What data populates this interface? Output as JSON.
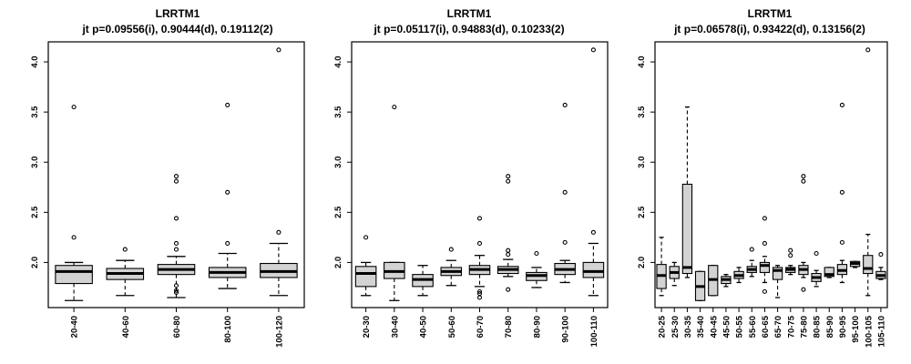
{
  "chart_data": [
    {
      "type": "boxplot",
      "title": "LRRTM1",
      "subtitle": "jt p=0.09556(i), 0.90444(d), 0.19112(2)",
      "ylim": [
        1.55,
        4.2
      ],
      "yticks": [
        "2.0",
        "2.5",
        "3.0",
        "3.5",
        "4.0"
      ],
      "categories": [
        "20-40",
        "40-60",
        "60-80",
        "80-100",
        "100-120"
      ],
      "boxes": [
        {
          "whisker_low": 1.62,
          "q1": 1.79,
          "median": 1.91,
          "q3": 1.97,
          "whisker_high": 2.0,
          "outliers": [
            2.25,
            3.55
          ]
        },
        {
          "whisker_low": 1.67,
          "q1": 1.83,
          "median": 1.89,
          "q3": 1.94,
          "whisker_high": 2.02,
          "outliers": [
            2.13
          ]
        },
        {
          "whisker_low": 1.65,
          "q1": 1.88,
          "median": 1.93,
          "q3": 1.98,
          "whisker_high": 2.06,
          "outliers": [
            1.7,
            1.72,
            1.77,
            2.13,
            2.19,
            2.44,
            2.81,
            2.86
          ]
        },
        {
          "whisker_low": 1.74,
          "q1": 1.85,
          "median": 1.9,
          "q3": 1.95,
          "whisker_high": 2.09,
          "outliers": [
            2.19,
            2.7,
            3.57
          ]
        },
        {
          "whisker_low": 1.67,
          "q1": 1.85,
          "median": 1.91,
          "q3": 1.99,
          "whisker_high": 2.19,
          "outliers": [
            2.3,
            4.12
          ]
        }
      ]
    },
    {
      "type": "boxplot",
      "title": "LRRTM1",
      "subtitle": "jt p=0.05117(i), 0.94883(d), 0.10233(2)",
      "ylim": [
        1.55,
        4.2
      ],
      "yticks": [
        "2.0",
        "2.5",
        "3.0",
        "3.5",
        "4.0"
      ],
      "categories": [
        "20-30",
        "30-40",
        "40-50",
        "50-60",
        "60-70",
        "70-80",
        "80-90",
        "90-100",
        "100-110"
      ],
      "boxes": [
        {
          "whisker_low": 1.67,
          "q1": 1.76,
          "median": 1.89,
          "q3": 1.96,
          "whisker_high": 2.0,
          "outliers": [
            2.25
          ]
        },
        {
          "whisker_low": 1.62,
          "q1": 1.84,
          "median": 1.91,
          "q3": 2.0,
          "whisker_high": 2.0,
          "outliers": [
            3.55
          ]
        },
        {
          "whisker_low": 1.67,
          "q1": 1.76,
          "median": 1.83,
          "q3": 1.88,
          "whisker_high": 1.97,
          "outliers": []
        },
        {
          "whisker_low": 1.77,
          "q1": 1.87,
          "median": 1.91,
          "q3": 1.95,
          "whisker_high": 2.02,
          "outliers": [
            2.13
          ]
        },
        {
          "whisker_low": 1.76,
          "q1": 1.88,
          "median": 1.93,
          "q3": 1.97,
          "whisker_high": 2.07,
          "outliers": [
            1.65,
            1.69,
            1.71,
            2.19,
            2.44
          ]
        },
        {
          "whisker_low": 1.86,
          "q1": 1.89,
          "median": 1.93,
          "q3": 1.96,
          "whisker_high": 2.03,
          "outliers": [
            1.73,
            2.08,
            2.12,
            2.81,
            2.86
          ]
        },
        {
          "whisker_low": 1.75,
          "q1": 1.82,
          "median": 1.87,
          "q3": 1.9,
          "whisker_high": 1.95,
          "outliers": [
            2.09
          ]
        },
        {
          "whisker_low": 1.8,
          "q1": 1.88,
          "median": 1.93,
          "q3": 1.99,
          "whisker_high": 2.02,
          "outliers": [
            2.2,
            2.7,
            3.57
          ]
        },
        {
          "whisker_low": 1.67,
          "q1": 1.85,
          "median": 1.91,
          "q3": 2.0,
          "whisker_high": 2.19,
          "outliers": [
            2.3,
            4.12
          ]
        }
      ]
    },
    {
      "type": "boxplot",
      "title": "LRRTM1",
      "subtitle": "jt p=0.06578(i), 0.93422(d), 0.13156(2)",
      "ylim": [
        1.55,
        4.2
      ],
      "yticks": [
        "2.0",
        "2.5",
        "3.0",
        "3.5",
        "4.0"
      ],
      "categories": [
        "20-25",
        "25-30",
        "30-35",
        "35-40",
        "40-45",
        "45-50",
        "50-55",
        "55-60",
        "60-65",
        "65-70",
        "70-75",
        "75-80",
        "80-85",
        "85-90",
        "90-95",
        "95-100",
        "100-105",
        "105-110"
      ],
      "boxes": [
        {
          "whisker_low": 1.67,
          "q1": 1.74,
          "median": 1.87,
          "q3": 1.98,
          "whisker_high": 2.25,
          "outliers": []
        },
        {
          "whisker_low": 1.77,
          "q1": 1.84,
          "median": 1.9,
          "q3": 1.96,
          "whisker_high": 2.0,
          "outliers": []
        },
        {
          "whisker_low": 1.85,
          "q1": 1.89,
          "median": 1.95,
          "q3": 2.78,
          "whisker_high": 3.55,
          "outliers": []
        },
        {
          "whisker_low": 1.62,
          "q1": 1.62,
          "median": 1.76,
          "q3": 1.91,
          "whisker_high": 1.91,
          "outliers": []
        },
        {
          "whisker_low": 1.67,
          "q1": 1.67,
          "median": 1.83,
          "q3": 1.97,
          "whisker_high": 1.97,
          "outliers": []
        },
        {
          "whisker_low": 1.76,
          "q1": 1.79,
          "median": 1.83,
          "q3": 1.86,
          "whisker_high": 1.88,
          "outliers": []
        },
        {
          "whisker_low": 1.8,
          "q1": 1.84,
          "median": 1.87,
          "q3": 1.91,
          "whisker_high": 1.95,
          "outliers": []
        },
        {
          "whisker_low": 1.86,
          "q1": 1.9,
          "median": 1.93,
          "q3": 1.96,
          "whisker_high": 2.02,
          "outliers": [
            2.13
          ]
        },
        {
          "whisker_low": 1.8,
          "q1": 1.9,
          "median": 1.97,
          "q3": 2.0,
          "whisker_high": 2.06,
          "outliers": [
            1.71,
            2.19,
            2.44
          ]
        },
        {
          "whisker_low": 1.65,
          "q1": 1.83,
          "median": 1.92,
          "q3": 1.95,
          "whisker_high": 1.97,
          "outliers": []
        },
        {
          "whisker_low": 1.88,
          "q1": 1.9,
          "median": 1.93,
          "q3": 1.95,
          "whisker_high": 1.97,
          "outliers": [
            2.07,
            2.12
          ]
        },
        {
          "whisker_low": 1.85,
          "q1": 1.88,
          "median": 1.93,
          "q3": 1.97,
          "whisker_high": 2.0,
          "outliers": [
            1.73,
            2.81,
            2.86
          ]
        },
        {
          "whisker_low": 1.76,
          "q1": 1.81,
          "median": 1.85,
          "q3": 1.89,
          "whisker_high": 1.92,
          "outliers": [
            2.09
          ]
        },
        {
          "whisker_low": 1.85,
          "q1": 1.86,
          "median": 1.88,
          "q3": 1.95,
          "whisker_high": 1.95,
          "outliers": []
        },
        {
          "whisker_low": 1.8,
          "q1": 1.88,
          "median": 1.92,
          "q3": 1.98,
          "whisker_high": 2.02,
          "outliers": [
            2.2,
            2.7,
            3.57
          ]
        },
        {
          "whisker_low": 1.95,
          "q1": 1.96,
          "median": 1.99,
          "q3": 2.01,
          "whisker_high": 2.01,
          "outliers": []
        },
        {
          "whisker_low": 1.67,
          "q1": 1.89,
          "median": 1.94,
          "q3": 2.07,
          "whisker_high": 2.28,
          "outliers": [
            4.12
          ]
        },
        {
          "whisker_low": 1.83,
          "q1": 1.84,
          "median": 1.87,
          "q3": 1.91,
          "whisker_high": 1.95,
          "outliers": [
            2.08
          ]
        }
      ]
    }
  ]
}
